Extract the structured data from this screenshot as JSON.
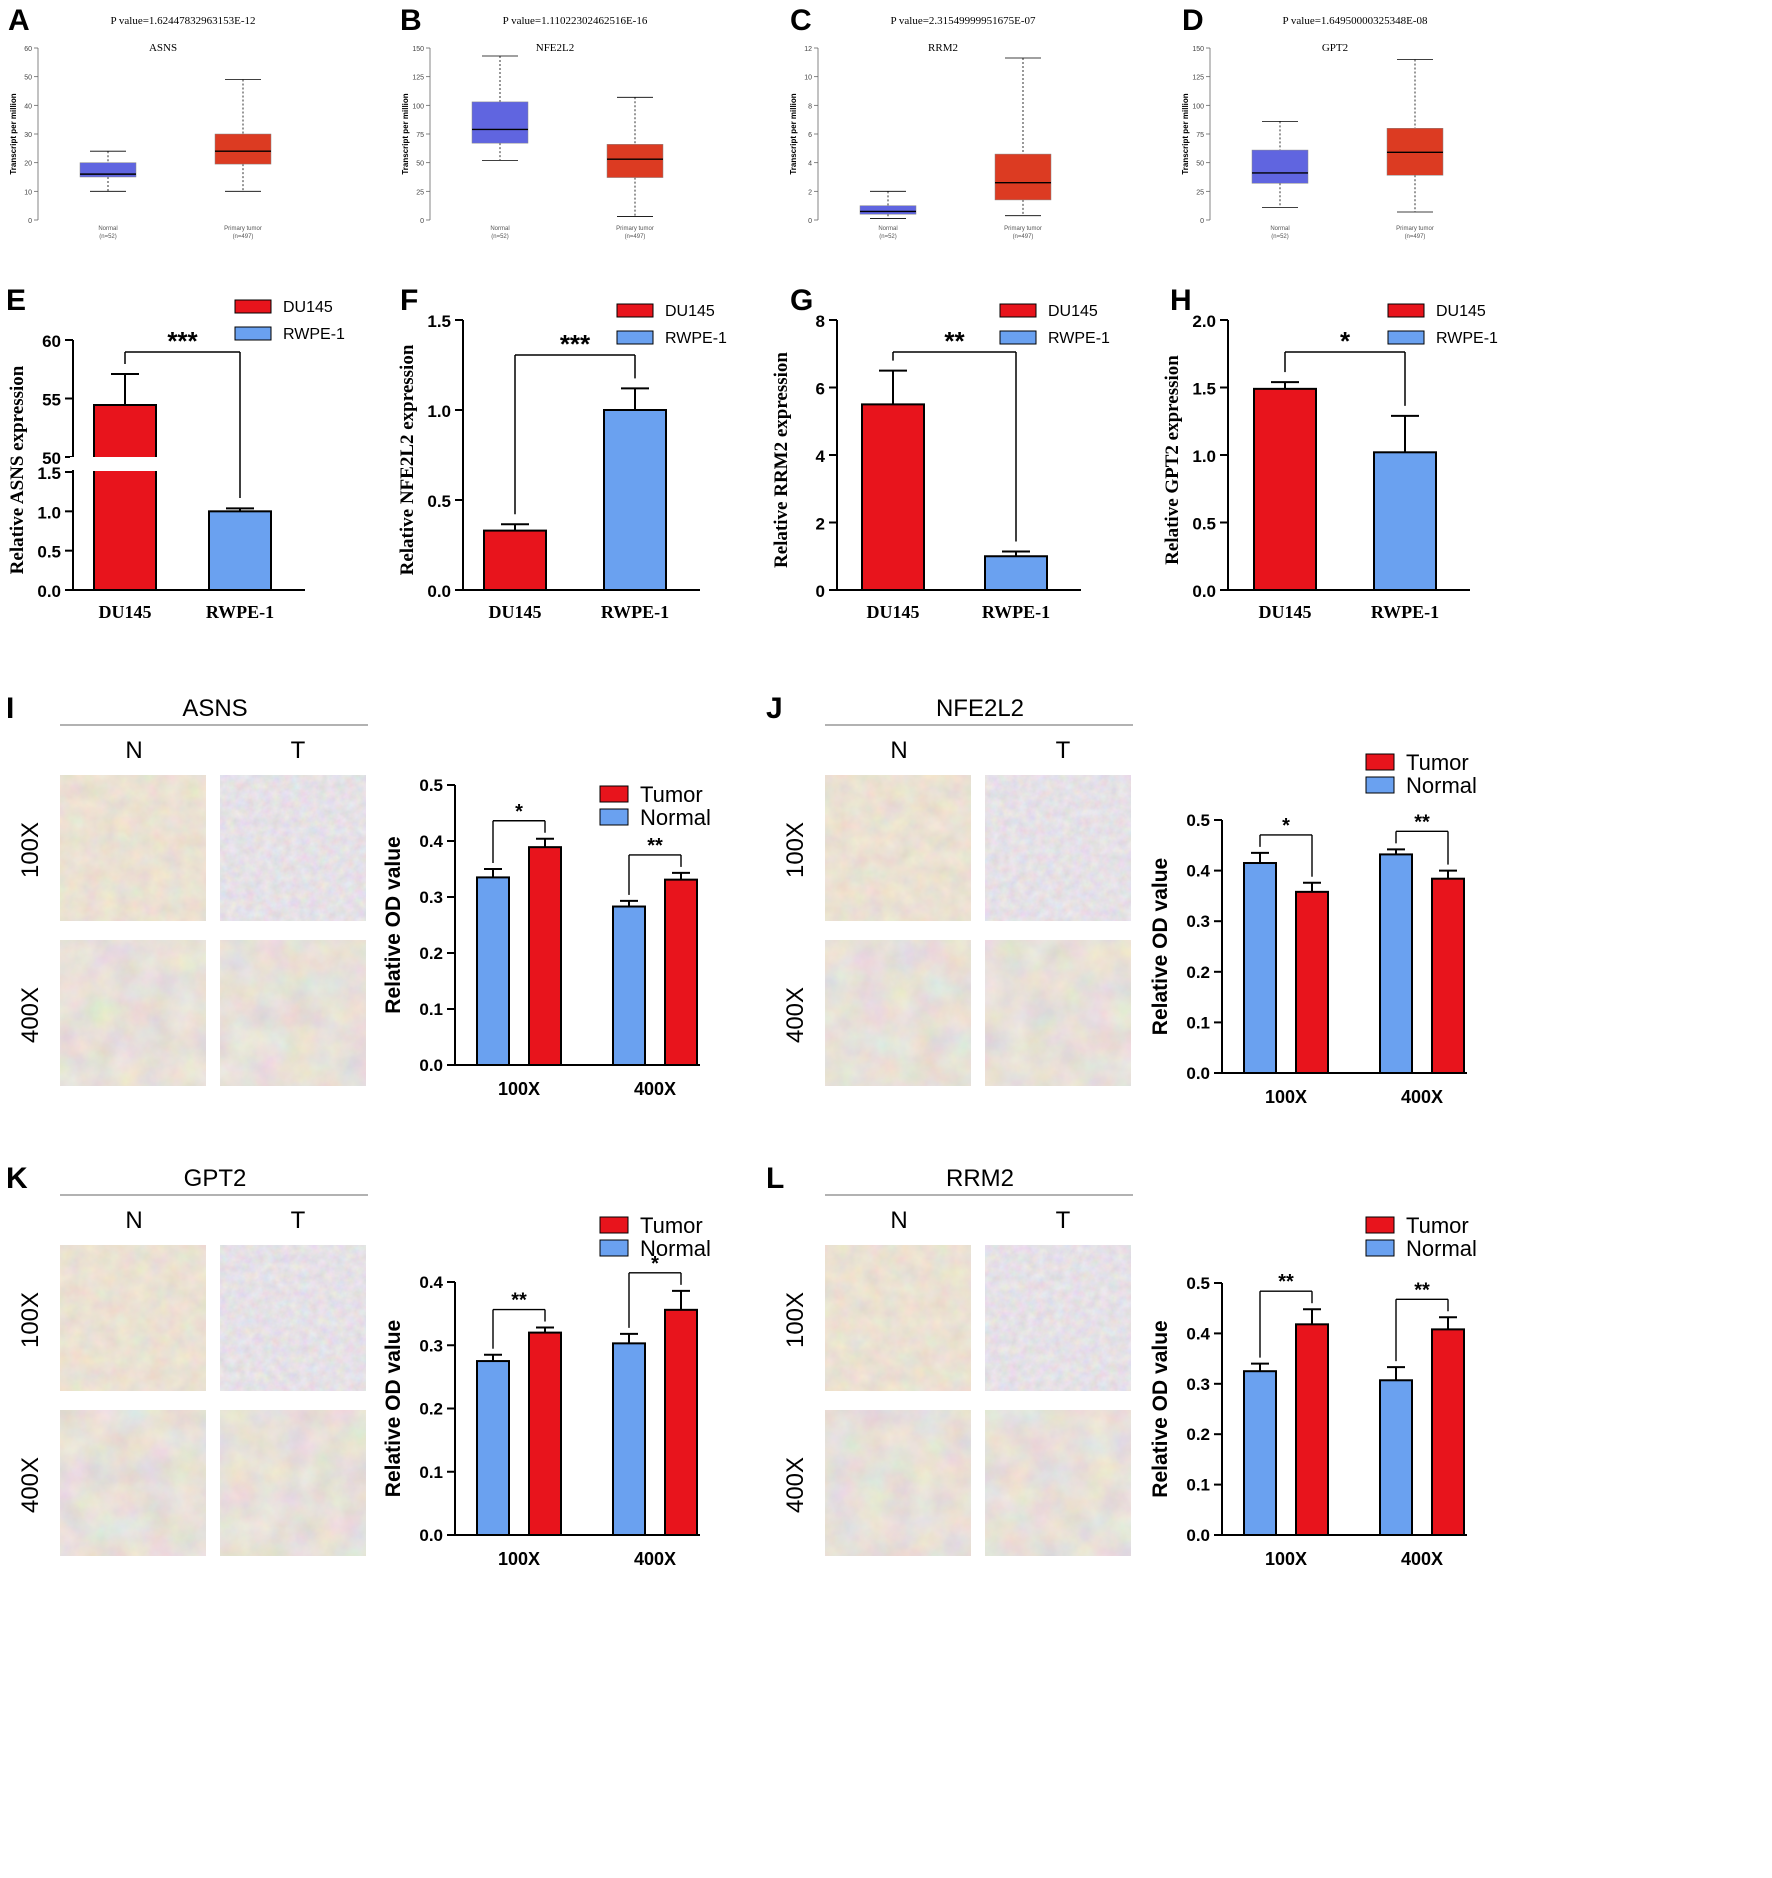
{
  "colors": {
    "blue_box": "#6065e0",
    "red_box": "#dc3b22",
    "bar_red": "#e8141c",
    "bar_blue": "#6aa1f0"
  },
  "chart_data": [
    {
      "id": "A",
      "type": "box",
      "title": "ASNS",
      "pvalue": "P value=1.62447832963153E-12",
      "ylabel": "Transcript per million",
      "ylim": [
        0,
        60
      ],
      "yticks": [
        0,
        10,
        20,
        30,
        40,
        50,
        60
      ],
      "groups": [
        {
          "name": "Normal",
          "n": "(n=52)",
          "min": 10,
          "q1": 15,
          "median": 16,
          "q3": 20,
          "max": 24
        },
        {
          "name": "Primary tumor",
          "n": "(n=497)",
          "min": 10,
          "q1": 19.5,
          "median": 24,
          "q3": 30,
          "max": 49
        }
      ]
    },
    {
      "id": "B",
      "type": "box",
      "title": "NFE2L2",
      "pvalue": "P value=1.11022302462516E-16",
      "ylabel": "Transcript per million",
      "ylim": [
        0,
        150
      ],
      "yticks": [
        0,
        25,
        50,
        75,
        100,
        125,
        150
      ],
      "groups": [
        {
          "name": "Normal",
          "n": "(n=52)",
          "min": 52,
          "q1": 67,
          "median": 79,
          "q3": 103,
          "max": 143
        },
        {
          "name": "Primary tumor",
          "n": "(n=497)",
          "min": 3,
          "q1": 37,
          "median": 53,
          "q3": 66,
          "max": 107
        }
      ]
    },
    {
      "id": "C",
      "type": "box",
      "title": "RRM2",
      "pvalue": "P value=2.31549999951675E-07",
      "ylabel": "Transcript per million",
      "ylim": [
        0,
        12
      ],
      "yticks": [
        0,
        2,
        4,
        6,
        8,
        10,
        12
      ],
      "groups": [
        {
          "name": "Normal",
          "n": "(n=52)",
          "min": 0.1,
          "q1": 0.4,
          "median": 0.6,
          "q3": 1.0,
          "max": 2.0
        },
        {
          "name": "Primary tumor",
          "n": "(n=497)",
          "min": 0.3,
          "q1": 1.4,
          "median": 2.6,
          "q3": 4.6,
          "max": 11.3
        }
      ]
    },
    {
      "id": "D",
      "type": "box",
      "title": "GPT2",
      "pvalue": "P value=1.64950000325348E-08",
      "ylabel": "Transcript per million",
      "ylim": [
        0,
        150
      ],
      "yticks": [
        0,
        25,
        50,
        75,
        100,
        125,
        150
      ],
      "groups": [
        {
          "name": "Normal",
          "n": "(n=52)",
          "min": 11,
          "q1": 32,
          "median": 41,
          "q3": 61,
          "max": 86
        },
        {
          "name": "Primary tumor",
          "n": "(n=497)",
          "min": 7,
          "q1": 39,
          "median": 59,
          "q3": 80,
          "max": 140
        }
      ]
    },
    {
      "id": "E",
      "type": "bar",
      "ylabel": "Relative ASNS expression",
      "broken_axis": true,
      "lower_range": [
        0,
        1.5
      ],
      "upper_range": [
        50,
        60
      ],
      "lower_ticks": [
        "0.0",
        "0.5",
        "1.0",
        "1.5"
      ],
      "upper_ticks": [
        "50",
        "55",
        "60"
      ],
      "categories": [
        "DU145",
        "RWPE-1"
      ],
      "values": [
        54.4,
        1.0
      ],
      "errors": [
        2.6,
        0.03
      ],
      "legend": [
        "DU145",
        "RWPE-1"
      ],
      "significance": "***"
    },
    {
      "id": "F",
      "type": "bar",
      "ylabel": "Relative NFE2L2 expression",
      "ylim": [
        0,
        1.5
      ],
      "yticks": [
        "0.0",
        "0.5",
        "1.0",
        "1.5"
      ],
      "categories": [
        "DU145",
        "RWPE-1"
      ],
      "values": [
        0.33,
        1.0
      ],
      "errors": [
        0.035,
        0.12
      ],
      "legend": [
        "DU145",
        "RWPE-1"
      ],
      "significance": "***"
    },
    {
      "id": "G",
      "type": "bar",
      "ylabel": "Relative RRM2 expression",
      "ylim": [
        0,
        8
      ],
      "yticks": [
        "0",
        "2",
        "4",
        "6",
        "8"
      ],
      "categories": [
        "DU145",
        "RWPE-1"
      ],
      "values": [
        5.5,
        1.0
      ],
      "errors": [
        1.0,
        0.14
      ],
      "legend": [
        "DU145",
        "RWPE-1"
      ],
      "significance": "**"
    },
    {
      "id": "H",
      "type": "bar",
      "ylabel": "Relative GPT2 expression",
      "ylim": [
        0,
        2.0
      ],
      "yticks": [
        "0.0",
        "0.5",
        "1.0",
        "1.5",
        "2.0"
      ],
      "categories": [
        "DU145",
        "RWPE-1"
      ],
      "values": [
        1.49,
        1.02
      ],
      "errors": [
        0.05,
        0.27
      ],
      "legend": [
        "DU145",
        "RWPE-1"
      ],
      "significance": "*"
    },
    {
      "id": "I",
      "type": "grouped-bar",
      "title": "ASNS",
      "ylabel": "Relative OD value",
      "ylim": [
        0,
        0.5
      ],
      "yticks": [
        "0.0",
        "0.1",
        "0.2",
        "0.3",
        "0.4",
        "0.5"
      ],
      "categories": [
        "100X",
        "400X"
      ],
      "legend": [
        "Tumor",
        "Normal"
      ],
      "series": [
        {
          "name": "Normal",
          "values": [
            0.335,
            0.283
          ],
          "errors": [
            0.015,
            0.01
          ]
        },
        {
          "name": "Tumor",
          "values": [
            0.389,
            0.331
          ],
          "errors": [
            0.015,
            0.012
          ]
        }
      ],
      "significance": [
        "*",
        "**"
      ]
    },
    {
      "id": "J",
      "type": "grouped-bar",
      "title": "NFE2L2",
      "ylabel": "Relative OD value",
      "ylim": [
        0,
        0.5
      ],
      "yticks": [
        "0.0",
        "0.1",
        "0.2",
        "0.3",
        "0.4",
        "0.5"
      ],
      "categories": [
        "100X",
        "400X"
      ],
      "legend": [
        "Tumor",
        "Normal"
      ],
      "series": [
        {
          "name": "Normal",
          "values": [
            0.415,
            0.432
          ],
          "errors": [
            0.02,
            0.01
          ]
        },
        {
          "name": "Tumor",
          "values": [
            0.358,
            0.384
          ],
          "errors": [
            0.018,
            0.016
          ]
        }
      ],
      "significance": [
        "*",
        "**"
      ]
    },
    {
      "id": "K",
      "type": "grouped-bar",
      "title": "GPT2",
      "ylabel": "Relative OD value",
      "ylim": [
        0,
        0.4
      ],
      "yticks": [
        "0.0",
        "0.1",
        "0.2",
        "0.3",
        "0.4"
      ],
      "categories": [
        "100X",
        "400X"
      ],
      "legend": [
        "Tumor",
        "Normal"
      ],
      "series": [
        {
          "name": "Normal",
          "values": [
            0.275,
            0.303
          ],
          "errors": [
            0.01,
            0.015
          ]
        },
        {
          "name": "Tumor",
          "values": [
            0.32,
            0.356
          ],
          "errors": [
            0.008,
            0.03
          ]
        }
      ],
      "significance": [
        "**",
        "*"
      ]
    },
    {
      "id": "L",
      "type": "grouped-bar",
      "title": "RRM2",
      "ylabel": "Relative OD value",
      "ylim": [
        0,
        0.5
      ],
      "yticks": [
        "0.0",
        "0.1",
        "0.2",
        "0.3",
        "0.4",
        "0.5"
      ],
      "categories": [
        "100X",
        "400X"
      ],
      "legend": [
        "Tumor",
        "Normal"
      ],
      "series": [
        {
          "name": "Normal",
          "values": [
            0.325,
            0.307
          ],
          "errors": [
            0.015,
            0.026
          ]
        },
        {
          "name": "Tumor",
          "values": [
            0.418,
            0.408
          ],
          "errors": [
            0.03,
            0.024
          ]
        }
      ],
      "significance": [
        "**",
        "**"
      ]
    }
  ],
  "ihc_panels": {
    "column_labels": [
      "N",
      "T"
    ],
    "row_labels": [
      "100X",
      "400X"
    ]
  }
}
